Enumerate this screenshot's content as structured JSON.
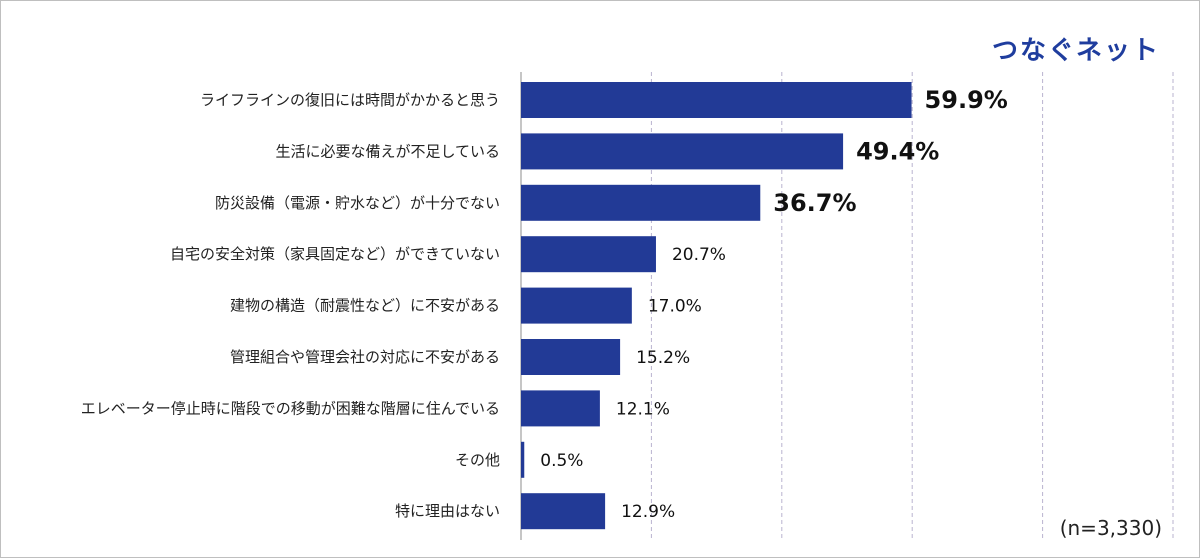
{
  "brand": "つなぐネット",
  "note": "(n=3,330)",
  "colors": {
    "bar": "#223a96",
    "grid": "#b9b3cf",
    "axis": "#8c8c8c"
  },
  "chart_data": {
    "type": "bar",
    "orientation": "horizontal",
    "title": "",
    "xlabel": "",
    "ylabel": "",
    "xlim": [
      0,
      100
    ],
    "grid": true,
    "unit": "%",
    "categories": [
      "ライフラインの復旧には時間がかかると思う",
      "生活に必要な備えが不足している",
      "防災設備（電源・貯水など）が十分でない",
      "自宅の安全対策（家具固定など）ができていない",
      "建物の構造（耐震性など）に不安がある",
      "管理組合や管理会社の対応に不安がある",
      "エレベーター停止時に階段での移動が困難な階層に住んでいる",
      "その他",
      "特に理由はない"
    ],
    "values": [
      59.9,
      49.4,
      36.7,
      20.7,
      17.0,
      15.2,
      12.1,
      0.5,
      12.9
    ],
    "value_labels": [
      "59.9%",
      "49.4%",
      "36.7%",
      "20.7%",
      "17.0%",
      "15.2%",
      "12.1%",
      "0.5%",
      "12.9%"
    ],
    "highlighted": [
      true,
      true,
      true,
      false,
      false,
      false,
      false,
      false,
      false
    ]
  }
}
